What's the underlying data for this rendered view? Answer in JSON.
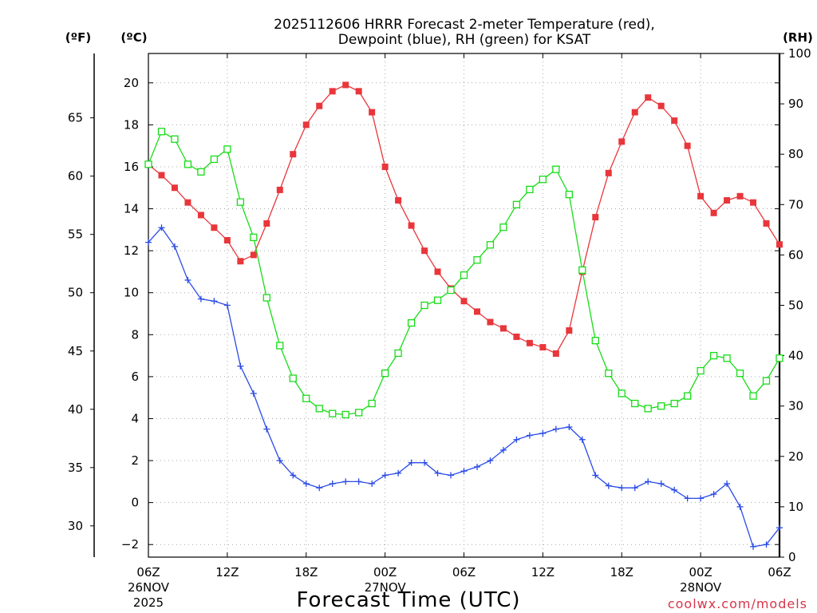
{
  "colors": {
    "temperature": "#e8363b",
    "dewpoint": "#2a4be6",
    "rh": "#18dc18",
    "credit": "#d8354a"
  },
  "chart_data": {
    "type": "line",
    "title_line1": "2025112606 HRRR Forecast 2-meter Temperature (red),",
    "title_line2": "Dewpoint (blue), RH (green) for KSAT",
    "xlabel": "Forecast Time (UTC)",
    "credit": "coolwx.com/models",
    "units": {
      "fahrenheit": "(ºF)",
      "celsius": "(ºC)",
      "rh": "(RH)"
    },
    "x_range_hours": [
      0,
      48
    ],
    "y_celsius_range": [
      -2.6,
      21.4
    ],
    "y_rh_range": [
      0,
      100
    ],
    "x_ticks": [
      {
        "hour": 0,
        "label": "06Z",
        "date": "26NOV",
        "year": "2025"
      },
      {
        "hour": 6,
        "label": "12Z",
        "date": "",
        "year": ""
      },
      {
        "hour": 12,
        "label": "18Z",
        "date": "",
        "year": ""
      },
      {
        "hour": 18,
        "label": "00Z",
        "date": "27NOV",
        "year": ""
      },
      {
        "hour": 24,
        "label": "06Z",
        "date": "",
        "year": ""
      },
      {
        "hour": 30,
        "label": "12Z",
        "date": "",
        "year": ""
      },
      {
        "hour": 36,
        "label": "18Z",
        "date": "",
        "year": ""
      },
      {
        "hour": 42,
        "label": "00Z",
        "date": "28NOV",
        "year": ""
      },
      {
        "hour": 48,
        "label": "06Z",
        "date": "",
        "year": ""
      }
    ],
    "celsius_ticks": [
      -2,
      0,
      2,
      4,
      6,
      8,
      10,
      12,
      14,
      16,
      18,
      20
    ],
    "fahrenheit_ticks": [
      30,
      35,
      40,
      45,
      50,
      55,
      60,
      65
    ],
    "rh_ticks": [
      0,
      10,
      20,
      30,
      40,
      50,
      60,
      70,
      80,
      90,
      100
    ],
    "series": [
      {
        "name": "Temperature",
        "unit": "C",
        "marker": "filled-square",
        "values": [
          16.1,
          15.6,
          15.0,
          14.3,
          13.7,
          13.1,
          12.5,
          11.5,
          11.8,
          13.3,
          14.9,
          16.6,
          18.0,
          18.9,
          19.6,
          19.9,
          19.6,
          18.6,
          16.0,
          14.4,
          13.2,
          12.0,
          11.0,
          10.2,
          9.6,
          9.1,
          8.6,
          8.3,
          7.9,
          7.6,
          7.4,
          7.1,
          8.2,
          11.0,
          13.6,
          15.7,
          17.2,
          18.6,
          19.3,
          18.9,
          18.2,
          17.0,
          14.6,
          13.8,
          14.4,
          14.6,
          14.3,
          13.3,
          12.3
        ]
      },
      {
        "name": "Dewpoint",
        "unit": "C",
        "marker": "plus",
        "values": [
          12.4,
          13.1,
          12.2,
          10.6,
          9.7,
          9.6,
          9.4,
          6.5,
          5.2,
          3.5,
          2.0,
          1.3,
          0.9,
          0.7,
          0.9,
          1.0,
          1.0,
          0.9,
          1.3,
          1.4,
          1.9,
          1.9,
          1.4,
          1.3,
          1.5,
          1.7,
          2.0,
          2.5,
          3.0,
          3.2,
          3.3,
          3.5,
          3.6,
          3.0,
          1.3,
          0.8,
          0.7,
          0.7,
          1.0,
          0.9,
          0.6,
          0.2,
          0.2,
          0.4,
          0.9,
          -0.2,
          -2.1,
          -2.0,
          -1.2
        ]
      },
      {
        "name": "RH",
        "unit": "%",
        "marker": "open-square",
        "values": [
          78,
          84.5,
          83,
          78,
          76.5,
          79,
          81,
          70.5,
          63.5,
          51.5,
          42,
          35.5,
          31.5,
          29.5,
          28.5,
          28.3,
          28.7,
          30.5,
          36.5,
          40.5,
          46.5,
          50,
          51,
          53,
          56,
          59,
          62,
          65.5,
          70,
          73,
          75,
          77,
          72,
          57,
          43,
          36.5,
          32.5,
          30.5,
          29.5,
          30,
          30.5,
          32,
          37,
          40,
          39.5,
          36.5,
          32,
          35,
          39.5
        ]
      }
    ]
  }
}
